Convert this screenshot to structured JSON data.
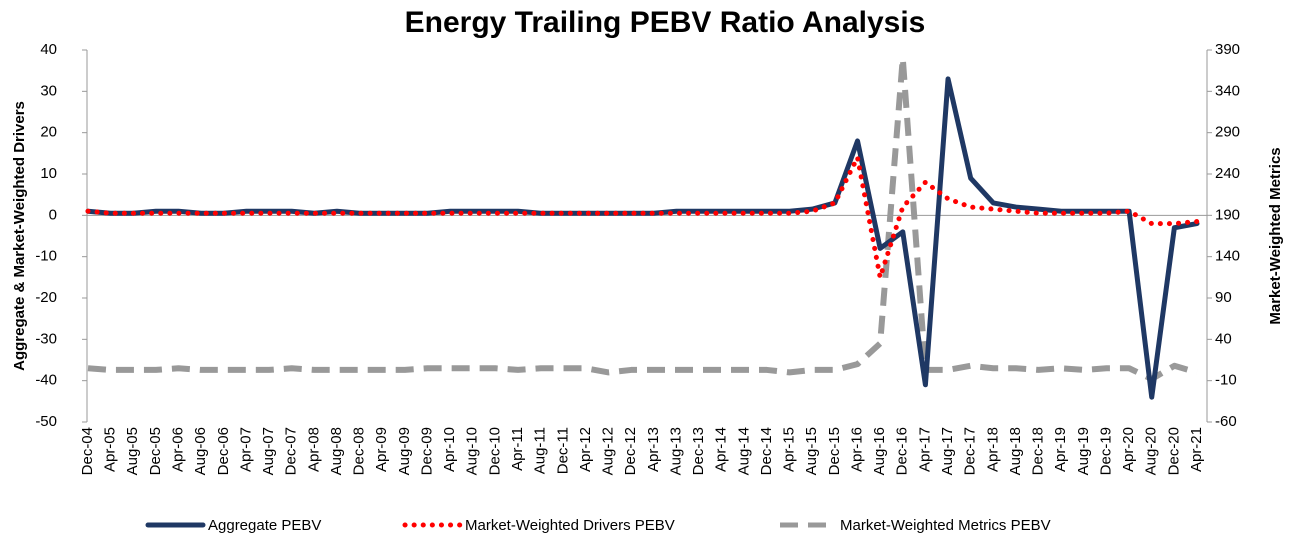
{
  "chart_data": {
    "type": "line",
    "title": "Energy Trailing PEBV Ratio Analysis",
    "y_label": "Aggregate & Market-Weighted Drivers",
    "y2_label": "Market-Weighted Metrics",
    "categories": [
      "Dec-04",
      "Apr-05",
      "Aug-05",
      "Dec-05",
      "Apr-06",
      "Aug-06",
      "Dec-06",
      "Apr-07",
      "Aug-07",
      "Dec-07",
      "Apr-08",
      "Aug-08",
      "Dec-08",
      "Apr-09",
      "Aug-09",
      "Dec-09",
      "Apr-10",
      "Aug-10",
      "Dec-10",
      "Apr-11",
      "Aug-11",
      "Dec-11",
      "Apr-12",
      "Aug-12",
      "Dec-12",
      "Apr-13",
      "Aug-13",
      "Dec-13",
      "Apr-14",
      "Aug-14",
      "Dec-14",
      "Apr-15",
      "Aug-15",
      "Dec-15",
      "Apr-16",
      "Aug-16",
      "Dec-16",
      "Apr-17",
      "Aug-17",
      "Dec-17",
      "Apr-18",
      "Aug-18",
      "Dec-18",
      "Apr-19",
      "Aug-19",
      "Dec-19",
      "Apr-20",
      "Aug-20",
      "Dec-20",
      "Apr-21"
    ],
    "series": [
      {
        "name": "Aggregate PEBV",
        "color": "#1f3864",
        "style": "solid",
        "values": [
          1,
          0.5,
          0.5,
          1,
          1,
          0.5,
          0.5,
          1,
          1,
          1,
          0.5,
          1,
          0.5,
          0.5,
          0.5,
          0.5,
          1,
          1,
          1,
          1,
          0.5,
          0.5,
          0.5,
          0.5,
          0.5,
          0.5,
          1,
          1,
          1,
          1,
          1,
          1,
          1.5,
          3,
          18,
          -8,
          -4,
          -41,
          33,
          9,
          3,
          2,
          1.5,
          1,
          1,
          1,
          1,
          -44,
          -3,
          -2
        ]
      },
      {
        "name": "Market-Weighted Drivers PEBV",
        "color": "#ff0000",
        "style": "dotted",
        "values": [
          1,
          0.5,
          0.5,
          0.5,
          0.5,
          0.5,
          0.5,
          0.5,
          0.5,
          0.5,
          0.5,
          0.5,
          0.5,
          0.5,
          0.5,
          0.5,
          0.5,
          0.5,
          0.5,
          0.5,
          0.5,
          0.5,
          0.5,
          0.5,
          0.5,
          0.5,
          0.5,
          0.5,
          0.5,
          0.5,
          0.5,
          0.5,
          1,
          3,
          14,
          -15,
          2,
          8,
          4,
          2,
          1.5,
          1,
          0.5,
          0.5,
          0.5,
          0.5,
          1,
          -2,
          -2,
          -1.5
        ]
      },
      {
        "name": "Market-Weighted Metrics PEBV",
        "color": "#999999",
        "style": "dashed",
        "axis": "y2",
        "values": [
          5,
          3,
          3,
          3,
          5,
          3,
          3,
          3,
          3,
          5,
          3,
          3,
          3,
          3,
          3,
          5,
          5,
          5,
          5,
          3,
          5,
          5,
          5,
          0,
          3,
          3,
          3,
          3,
          3,
          3,
          3,
          0,
          3,
          3,
          10,
          35,
          380,
          3,
          3,
          8,
          5,
          5,
          3,
          5,
          3,
          5,
          5,
          -8,
          8,
          0
        ]
      }
    ],
    "ylim": [
      -50,
      40
    ],
    "yticks": [
      -50,
      -40,
      -30,
      -20,
      -10,
      0,
      10,
      20,
      30,
      40
    ],
    "y2lim": [
      -60,
      390
    ],
    "y2ticks": [
      -60,
      -10,
      40,
      90,
      140,
      190,
      240,
      290,
      340,
      390
    ],
    "legend": "bottom"
  }
}
